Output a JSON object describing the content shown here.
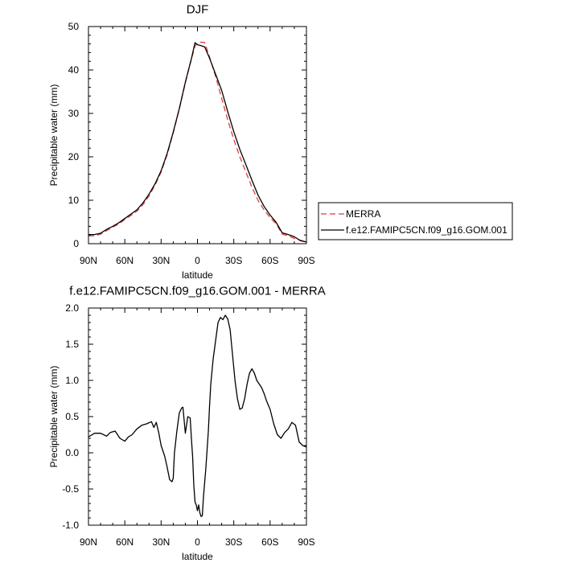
{
  "chart_data": [
    {
      "type": "line",
      "title": "DJF",
      "xlabel": "latitude",
      "ylabel": "Precipitable water (mm)",
      "xlim": [
        90,
        -90
      ],
      "ylim": [
        0,
        50
      ],
      "x_ticks": [
        {
          "value": 90,
          "label": "90N"
        },
        {
          "value": 60,
          "label": "60N"
        },
        {
          "value": 30,
          "label": "30N"
        },
        {
          "value": 0,
          "label": "0"
        },
        {
          "value": -30,
          "label": "30S"
        },
        {
          "value": -60,
          "label": "60S"
        },
        {
          "value": -90,
          "label": "90S"
        }
      ],
      "y_ticks": [
        0,
        10,
        20,
        30,
        40,
        50
      ],
      "grid": false,
      "legend_position": "right-outside",
      "series": [
        {
          "name": "MERRA",
          "color": "#e03c3c",
          "dash": "dashed",
          "x": [
            90,
            85,
            80,
            75,
            70,
            65,
            60,
            55,
            50,
            45,
            40,
            35,
            30,
            25,
            20,
            15,
            10,
            5,
            2,
            0,
            -3,
            -6,
            -10,
            -15,
            -20,
            -25,
            -30,
            -35,
            -40,
            -45,
            -50,
            -55,
            -60,
            -65,
            -70,
            -75,
            -80,
            -85,
            -90
          ],
          "y": [
            1.8,
            1.8,
            2.2,
            3.0,
            3.8,
            4.5,
            5.6,
            6.5,
            7.5,
            9.0,
            11.0,
            13.5,
            16.5,
            20.5,
            25.5,
            31.0,
            37.0,
            42.5,
            45.5,
            46.2,
            46.4,
            46.3,
            43.0,
            38.5,
            33.5,
            28.5,
            24.0,
            20.0,
            16.5,
            13.0,
            10.0,
            7.8,
            6.0,
            4.6,
            2.2,
            1.8,
            1.2,
            0.8,
            0.4
          ]
        },
        {
          "name": "f.e12.FAMIPC5CN.f09_g16.GOM.001",
          "color": "#000000",
          "dash": "solid",
          "x": [
            90,
            85,
            80,
            75,
            70,
            65,
            60,
            55,
            50,
            45,
            40,
            35,
            30,
            25,
            20,
            15,
            10,
            5,
            2,
            0,
            -3,
            -6,
            -10,
            -15,
            -20,
            -25,
            -30,
            -35,
            -40,
            -45,
            -50,
            -55,
            -60,
            -65,
            -70,
            -75,
            -80,
            -85,
            -90
          ],
          "y": [
            2.1,
            2.1,
            2.4,
            3.3,
            4.0,
            4.8,
            5.8,
            6.8,
            7.8,
            9.4,
            11.4,
            13.8,
            16.8,
            20.8,
            25.7,
            31.1,
            37.2,
            42.6,
            46.3,
            45.8,
            45.6,
            45.3,
            42.7,
            39.0,
            35.3,
            30.4,
            25.8,
            21.7,
            18.2,
            14.6,
            11.2,
            8.6,
            6.6,
            4.9,
            2.5,
            2.1,
            1.6,
            0.7,
            0.4
          ]
        }
      ]
    },
    {
      "type": "line",
      "title": "f.e12.FAMIPC5CN.f09_g16.GOM.001 - MERRA",
      "xlabel": "latitude",
      "ylabel": "Precipitable water (mm)",
      "xlim": [
        90,
        -90
      ],
      "ylim": [
        -1.0,
        2.0
      ],
      "x_ticks": [
        {
          "value": 90,
          "label": "90N"
        },
        {
          "value": 60,
          "label": "60N"
        },
        {
          "value": 30,
          "label": "30N"
        },
        {
          "value": 0,
          "label": "0"
        },
        {
          "value": -30,
          "label": "30S"
        },
        {
          "value": -60,
          "label": "60S"
        },
        {
          "value": -90,
          "label": "90S"
        }
      ],
      "y_ticks": [
        {
          "value": -1.0,
          "label": "-1.0"
        },
        {
          "value": -0.5,
          "label": "-0.5"
        },
        {
          "value": 0.0,
          "label": "0.0"
        },
        {
          "value": 0.5,
          "label": "0.5"
        },
        {
          "value": 1.0,
          "label": "1.0"
        },
        {
          "value": 1.5,
          "label": "1.5"
        },
        {
          "value": 2.0,
          "label": "2.0"
        }
      ],
      "grid": false,
      "series": [
        {
          "color": "#000000",
          "dash": "solid",
          "x": [
            90,
            85,
            80,
            75,
            72,
            68,
            64,
            60,
            57,
            54,
            50,
            46,
            42,
            38,
            36,
            34,
            32,
            30,
            27,
            25,
            23,
            21,
            20,
            19,
            17,
            15,
            13,
            12,
            11,
            10,
            8,
            6,
            5,
            4,
            3,
            2,
            1,
            0,
            -1,
            -2,
            -3,
            -4,
            -5,
            -7,
            -9,
            -10,
            -11,
            -13,
            -15,
            -17,
            -19,
            -21,
            -23,
            -25,
            -27,
            -29,
            -31,
            -33,
            -35,
            -37,
            -39,
            -41,
            -43,
            -45,
            -47,
            -49,
            -51,
            -53,
            -55,
            -57,
            -60,
            -63,
            -66,
            -69,
            -72,
            -75,
            -78,
            -81,
            -84,
            -87,
            -90
          ],
          "y": [
            0.22,
            0.27,
            0.27,
            0.23,
            0.28,
            0.3,
            0.2,
            0.16,
            0.22,
            0.25,
            0.33,
            0.38,
            0.4,
            0.43,
            0.35,
            0.42,
            0.28,
            0.1,
            -0.05,
            -0.2,
            -0.37,
            -0.4,
            -0.35,
            0.0,
            0.3,
            0.55,
            0.62,
            0.63,
            0.45,
            0.27,
            0.5,
            0.48,
            0.2,
            -0.05,
            -0.45,
            -0.68,
            -0.72,
            -0.8,
            -0.72,
            -0.83,
            -0.88,
            -0.87,
            -0.6,
            -0.2,
            0.3,
            0.65,
            0.95,
            1.3,
            1.55,
            1.8,
            1.87,
            1.84,
            1.9,
            1.85,
            1.7,
            1.35,
            1.0,
            0.75,
            0.6,
            0.62,
            0.75,
            0.95,
            1.1,
            1.16,
            1.1,
            1.0,
            0.95,
            0.9,
            0.82,
            0.72,
            0.6,
            0.4,
            0.25,
            0.2,
            0.28,
            0.33,
            0.42,
            0.38,
            0.15,
            0.1,
            0.08
          ]
        }
      ]
    }
  ]
}
